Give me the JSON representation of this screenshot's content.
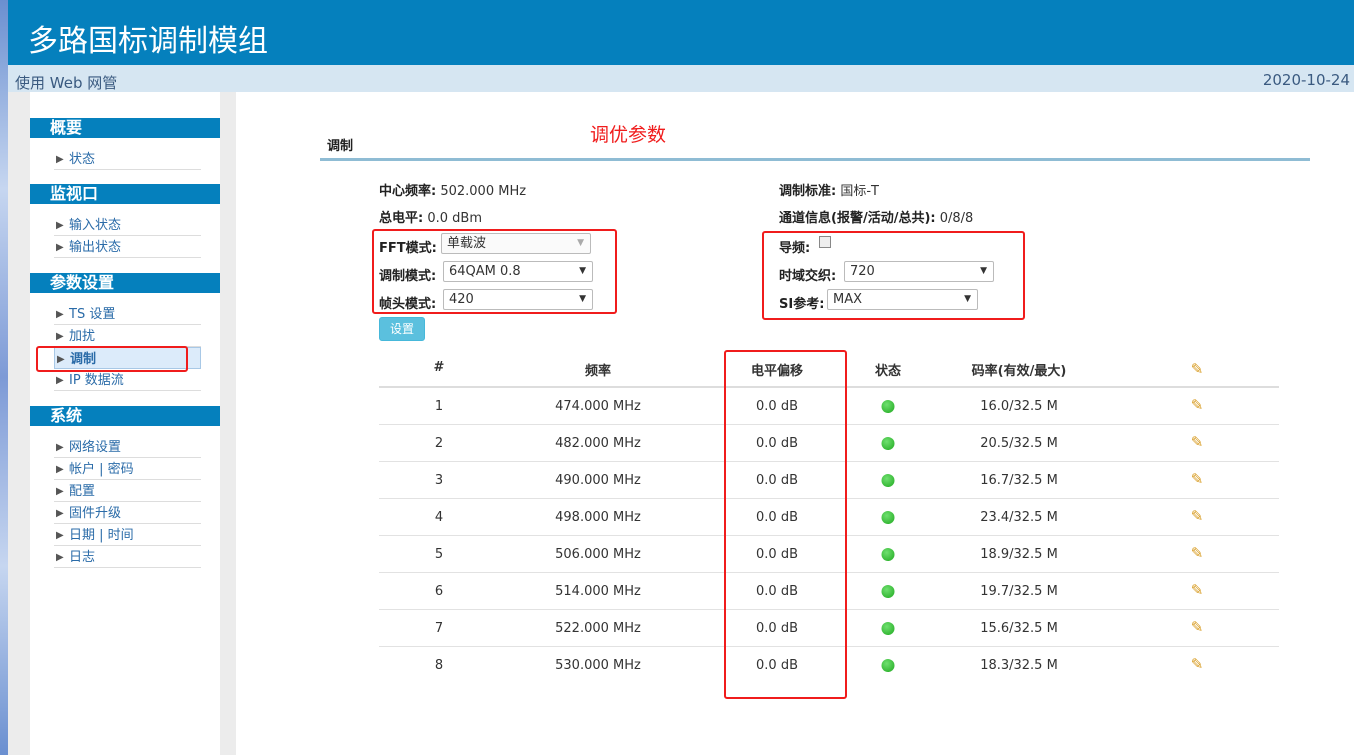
{
  "header": {
    "title": "多路国标调制模组",
    "subtitle": "使用 Web 网管",
    "date": "2020-10-24"
  },
  "sidebar": [
    {
      "title": "概要",
      "items": [
        "状态"
      ]
    },
    {
      "title": "监视口",
      "items": [
        "输入状态",
        "输出状态"
      ]
    },
    {
      "title": "参数设置",
      "items": [
        "TS 设置",
        "加扰",
        "调制",
        "IP 数据流"
      ],
      "active": "调制"
    },
    {
      "title": "系统",
      "items": [
        "网络设置",
        "帐户 | 密码",
        "配置",
        "固件升级",
        "日期 | 时间",
        "日志"
      ]
    }
  ],
  "main": {
    "section_title": "调制",
    "annotation": "调优参数",
    "center_freq": {
      "label": "中心频率:",
      "value": "502.000 MHz"
    },
    "total_level": {
      "label": "总电平:",
      "value": "0.0 dBm"
    },
    "standard": {
      "label": "调制标准:",
      "value": "国标-T"
    },
    "channel_info": {
      "label": "通道信息(报警/活动/总共):",
      "value": "0/8/8"
    },
    "fft_mode": {
      "label": "FFT模式:",
      "value": "单载波"
    },
    "mod_mode": {
      "label": "调制模式:",
      "value": "64QAM 0.8"
    },
    "frame_mode": {
      "label": "帧头模式:",
      "value": "420"
    },
    "pilot": {
      "label": "导频:",
      "checked": false
    },
    "interleave": {
      "label": "时域交织:",
      "value": "720"
    },
    "si_ref": {
      "label": "SI参考:",
      "value": "MAX"
    },
    "set_button": "设置",
    "table": {
      "headers": [
        "#",
        "频率",
        "电平偏移",
        "状态",
        "码率(有效/最大)"
      ],
      "status_color": "#22aa22",
      "rows": [
        {
          "n": "1",
          "freq": "474.000 MHz",
          "level": "0.0 dB",
          "rate": "16.0/32.5 M"
        },
        {
          "n": "2",
          "freq": "482.000 MHz",
          "level": "0.0 dB",
          "rate": "20.5/32.5 M"
        },
        {
          "n": "3",
          "freq": "490.000 MHz",
          "level": "0.0 dB",
          "rate": "16.7/32.5 M"
        },
        {
          "n": "4",
          "freq": "498.000 MHz",
          "level": "0.0 dB",
          "rate": "23.4/32.5 M"
        },
        {
          "n": "5",
          "freq": "506.000 MHz",
          "level": "0.0 dB",
          "rate": "18.9/32.5 M"
        },
        {
          "n": "6",
          "freq": "514.000 MHz",
          "level": "0.0 dB",
          "rate": "19.7/32.5 M"
        },
        {
          "n": "7",
          "freq": "522.000 MHz",
          "level": "0.0 dB",
          "rate": "15.6/32.5 M"
        },
        {
          "n": "8",
          "freq": "530.000 MHz",
          "level": "0.0 dB",
          "rate": "18.3/32.5 M"
        }
      ]
    }
  }
}
